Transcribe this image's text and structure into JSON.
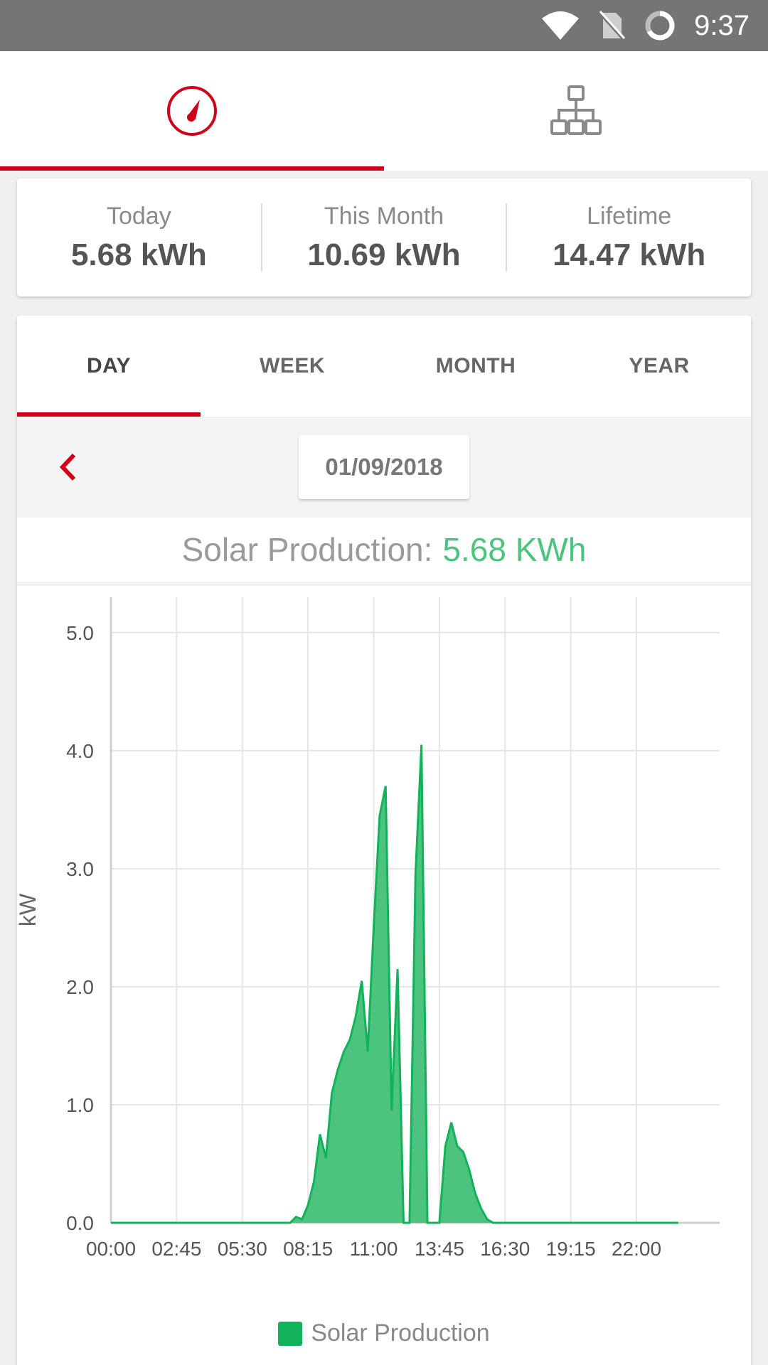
{
  "status_bar": {
    "time": "9:37"
  },
  "top_nav": {
    "tabs": [
      {
        "name": "dashboard",
        "icon": "gauge-icon",
        "active": true
      },
      {
        "name": "layout",
        "icon": "hierarchy-icon",
        "active": false
      }
    ]
  },
  "summary": {
    "today": {
      "label": "Today",
      "value": "5.68 kWh"
    },
    "month": {
      "label": "This Month",
      "value": "10.69 kWh"
    },
    "lifetime": {
      "label": "Lifetime",
      "value": "14.47 kWh"
    }
  },
  "period_tabs": [
    "DAY",
    "WEEK",
    "MONTH",
    "YEAR"
  ],
  "active_period": "DAY",
  "date": "01/09/2018",
  "production": {
    "label": "Solar Production:",
    "value": "5.68 KWh"
  },
  "colors": {
    "accent": "#d0021b",
    "series": "#12b25a",
    "value_text": "#4cc37e"
  },
  "chart_data": {
    "type": "area",
    "ylabel": "kW",
    "xlabel": "",
    "ylim": [
      0,
      5.3
    ],
    "yticks": [
      "0.0",
      "1.0",
      "2.0",
      "3.0",
      "4.0",
      "5.0"
    ],
    "xticks": [
      "00:00",
      "02:45",
      "05:30",
      "08:15",
      "11:00",
      "13:45",
      "16:30",
      "19:15",
      "22:00"
    ],
    "grid": true,
    "legend_position": "bottom",
    "series": [
      {
        "name": "Solar Production",
        "points": [
          [
            "00:00",
            0
          ],
          [
            "07:30",
            0
          ],
          [
            "07:45",
            0.05
          ],
          [
            "08:00",
            0.03
          ],
          [
            "08:15",
            0.15
          ],
          [
            "08:30",
            0.35
          ],
          [
            "08:45",
            0.75
          ],
          [
            "09:00",
            0.55
          ],
          [
            "09:15",
            1.1
          ],
          [
            "09:30",
            1.3
          ],
          [
            "09:45",
            1.45
          ],
          [
            "10:00",
            1.55
          ],
          [
            "10:15",
            1.75
          ],
          [
            "10:30",
            2.05
          ],
          [
            "10:45",
            1.45
          ],
          [
            "11:00",
            2.5
          ],
          [
            "11:15",
            3.45
          ],
          [
            "11:30",
            3.7
          ],
          [
            "11:45",
            0.95
          ],
          [
            "12:00",
            2.15
          ],
          [
            "12:15",
            0
          ],
          [
            "12:30",
            0
          ],
          [
            "12:45",
            2.95
          ],
          [
            "13:00",
            4.05
          ],
          [
            "13:15",
            0
          ],
          [
            "13:30",
            0
          ],
          [
            "13:45",
            0
          ],
          [
            "14:00",
            0.65
          ],
          [
            "14:15",
            0.85
          ],
          [
            "14:30",
            0.65
          ],
          [
            "14:45",
            0.6
          ],
          [
            "15:00",
            0.45
          ],
          [
            "15:15",
            0.25
          ],
          [
            "15:30",
            0.12
          ],
          [
            "15:45",
            0.03
          ],
          [
            "16:00",
            0
          ],
          [
            "23:45",
            0
          ]
        ]
      }
    ]
  }
}
